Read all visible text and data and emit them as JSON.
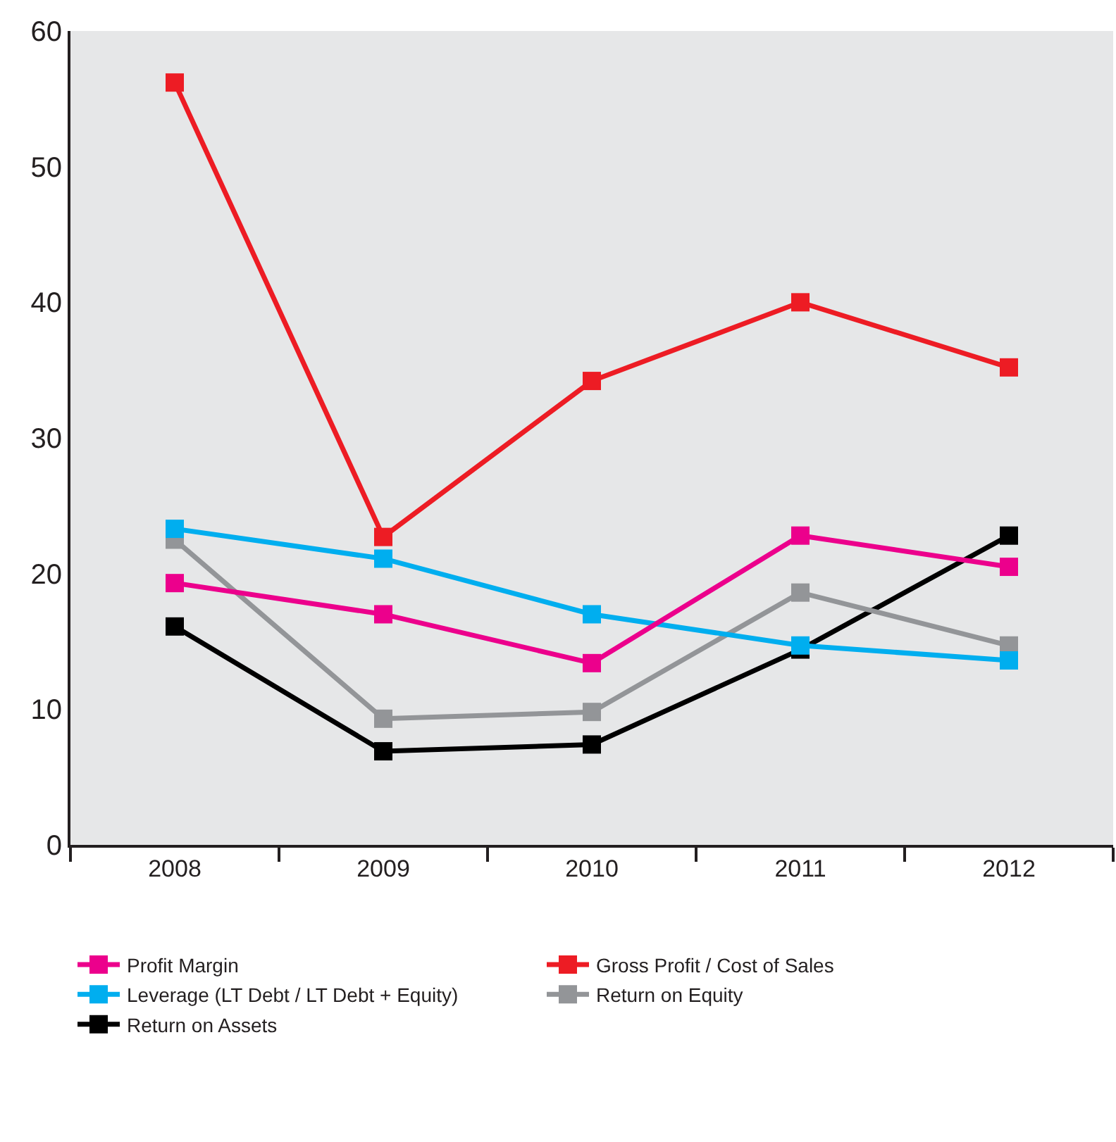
{
  "chart_data": {
    "type": "line",
    "categories": [
      "2008",
      "2009",
      "2010",
      "2011",
      "2012"
    ],
    "series": [
      {
        "name": "Profit Margin",
        "color": "#ec008c",
        "values": [
          19.3,
          17.0,
          13.4,
          22.8,
          20.5
        ]
      },
      {
        "name": "Gross Profit / Cost of Sales",
        "color": "#ed1c24",
        "values": [
          56.2,
          22.7,
          34.2,
          40.0,
          35.2
        ]
      },
      {
        "name": "Leverage (LT Debt / LT Debt + Equity)",
        "color": "#00aeef",
        "values": [
          23.3,
          21.1,
          17.0,
          14.7,
          13.6
        ]
      },
      {
        "name": "Return on Equity",
        "color": "#939598",
        "values": [
          22.5,
          9.3,
          9.8,
          18.6,
          14.7
        ]
      },
      {
        "name": "Return on Assets",
        "color": "#000000",
        "values": [
          16.1,
          6.9,
          7.4,
          14.4,
          22.8
        ]
      }
    ],
    "ylim": [
      0,
      60
    ],
    "yticks": [
      0,
      10,
      20,
      30,
      40,
      50,
      60
    ],
    "grid": false,
    "legend": "bottom",
    "marker": "square",
    "line_style": "solid"
  }
}
